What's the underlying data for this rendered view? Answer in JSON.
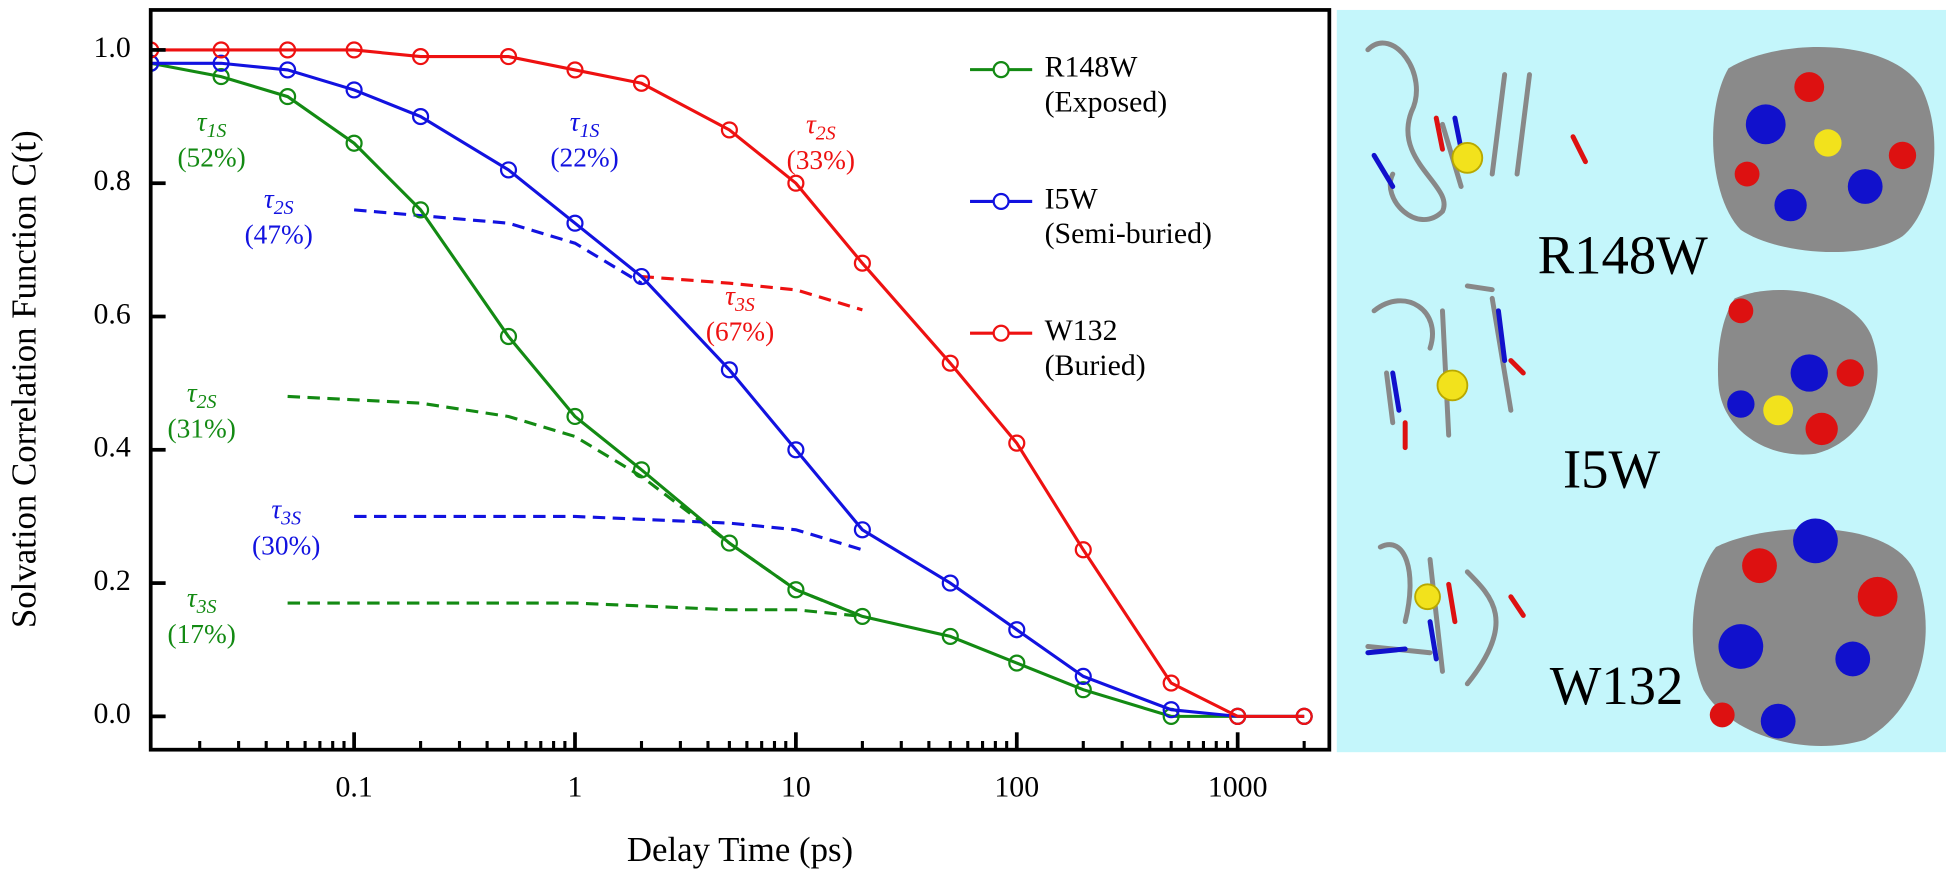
{
  "chart_data": {
    "type": "line",
    "xlabel": "Delay Time (ps)",
    "ylabel": "Solvation Correlation Function C(t)",
    "log_x": true,
    "xlim": [
      0.012,
      2600
    ],
    "ylim": [
      -0.05,
      1.06
    ],
    "xticks": [
      0.1,
      1,
      10,
      100,
      1000
    ],
    "yticks": [
      {
        "value": 0,
        "label": "0.0"
      },
      {
        "value": 0.2,
        "label": "0.2"
      },
      {
        "value": 0.4,
        "label": "0.4"
      },
      {
        "value": 0.6,
        "label": "0.6"
      },
      {
        "value": 0.8,
        "label": "0.8"
      },
      {
        "value": 1,
        "label": "1.0"
      }
    ],
    "x": [
      0.012,
      0.025,
      0.05,
      0.1,
      0.2,
      0.5,
      1,
      2,
      5,
      10,
      20,
      50,
      100,
      200,
      500,
      1000,
      2000
    ],
    "series": [
      {
        "name": "R148W",
        "description": "(Exposed)",
        "color": "#138a13",
        "values": [
          0.98,
          0.96,
          0.93,
          0.86,
          0.76,
          0.57,
          0.45,
          0.37,
          0.26,
          0.19,
          0.15,
          0.12,
          0.08,
          0.04,
          0.0,
          0.0,
          0.0
        ]
      },
      {
        "name": "I5W",
        "description": "(Semi-buried)",
        "color": "#1212e0",
        "values": [
          0.98,
          0.98,
          0.97,
          0.94,
          0.9,
          0.82,
          0.74,
          0.66,
          0.52,
          0.4,
          0.28,
          0.2,
          0.13,
          0.06,
          0.01,
          0.0,
          0.0
        ]
      },
      {
        "name": "W132",
        "description": "(Buried)",
        "color": "#ee1111",
        "values": [
          1.0,
          1.0,
          1.0,
          1.0,
          0.99,
          0.99,
          0.97,
          0.95,
          0.88,
          0.8,
          0.68,
          0.53,
          0.41,
          0.25,
          0.05,
          0.0,
          0.0
        ]
      }
    ],
    "components": [
      {
        "color": "#138a13",
        "x": [
          0.05,
          0.2,
          0.5,
          1,
          2,
          5,
          10,
          20
        ],
        "values": [
          0.48,
          0.47,
          0.45,
          0.42,
          0.36,
          0.26,
          0.19,
          0.15
        ]
      },
      {
        "color": "#138a13",
        "x": [
          0.05,
          1,
          5,
          10,
          20
        ],
        "values": [
          0.17,
          0.17,
          0.16,
          0.16,
          0.15
        ]
      },
      {
        "color": "#1212e0",
        "x": [
          0.1,
          0.5,
          1,
          2
        ],
        "values": [
          0.76,
          0.74,
          0.71,
          0.65
        ]
      },
      {
        "color": "#1212e0",
        "x": [
          0.1,
          1,
          5,
          10,
          20
        ],
        "values": [
          0.3,
          0.3,
          0.29,
          0.28,
          0.25
        ]
      },
      {
        "color": "#ee1111",
        "x": [
          2,
          5,
          10,
          20
        ],
        "values": [
          0.66,
          0.65,
          0.64,
          0.61
        ]
      }
    ],
    "annotations": [
      {
        "symbol": "τ",
        "subscript": "1S",
        "text": "(52%)",
        "color": "#138a13"
      },
      {
        "symbol": "τ",
        "subscript": "2S",
        "text": "(47%)",
        "color": "#1212e0"
      },
      {
        "symbol": "τ",
        "subscript": "2S",
        "text": "(31%)",
        "color": "#138a13"
      },
      {
        "symbol": "τ",
        "subscript": "3S",
        "text": "(30%)",
        "color": "#1212e0"
      },
      {
        "symbol": "τ",
        "subscript": "3S",
        "text": "(17%)",
        "color": "#138a13"
      },
      {
        "symbol": "τ",
        "subscript": "1S",
        "text": "(22%)",
        "color": "#1212e0"
      },
      {
        "symbol": "τ",
        "subscript": "2S",
        "text": "(33%)",
        "color": "#ee1111"
      },
      {
        "symbol": "τ",
        "subscript": "3S",
        "text": "(67%)",
        "color": "#ee1111"
      }
    ]
  },
  "structures": {
    "labels": [
      "R148W",
      "I5W",
      "W132"
    ]
  }
}
